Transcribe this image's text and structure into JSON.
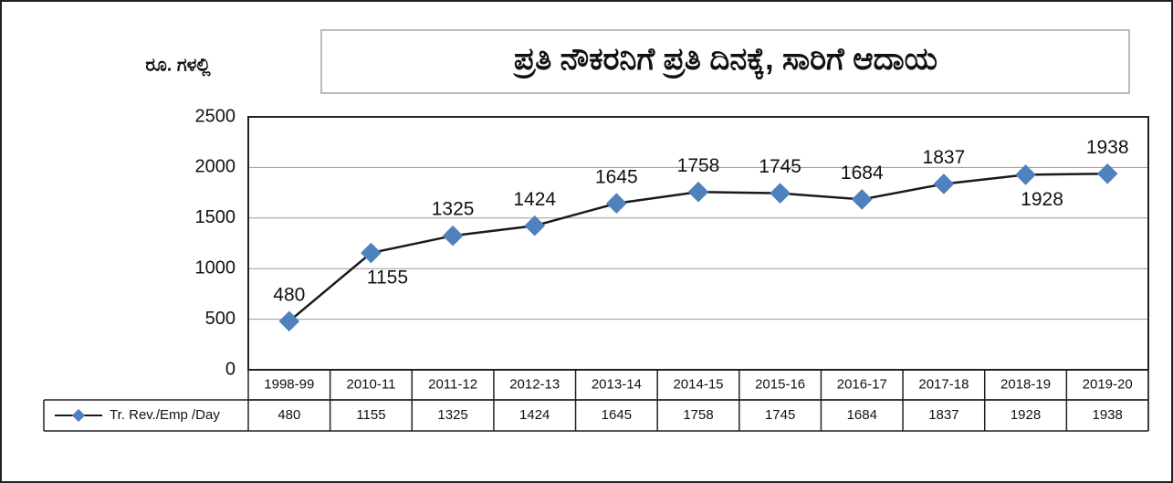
{
  "chart_data": {
    "type": "line",
    "title": "ಪ್ರತಿ ನೌಕರನಿಗೆ ಪ್ರತಿ ದಿನಕ್ಕೆ, ಸಾರಿಗೆ ಆದಾಯ",
    "y_label": "ರೂ. ಗಳಲ್ಲಿ",
    "categories": [
      "1998-99",
      "2010-11",
      "2011-12",
      "2012-13",
      "2013-14",
      "2014-15",
      "2015-16",
      "2016-17",
      "2017-18",
      "2018-19",
      "2019-20"
    ],
    "series": [
      {
        "name": "Tr. Rev./Emp /Day",
        "color": "#4f81bd",
        "line_color": "#1a1a1a",
        "values": [
          480,
          1155,
          1325,
          1424,
          1645,
          1758,
          1745,
          1684,
          1837,
          1928,
          1938
        ]
      }
    ],
    "ylim": [
      0,
      2500
    ],
    "yticks": [
      0,
      500,
      1000,
      1500,
      2000,
      2500
    ],
    "grid": true
  }
}
